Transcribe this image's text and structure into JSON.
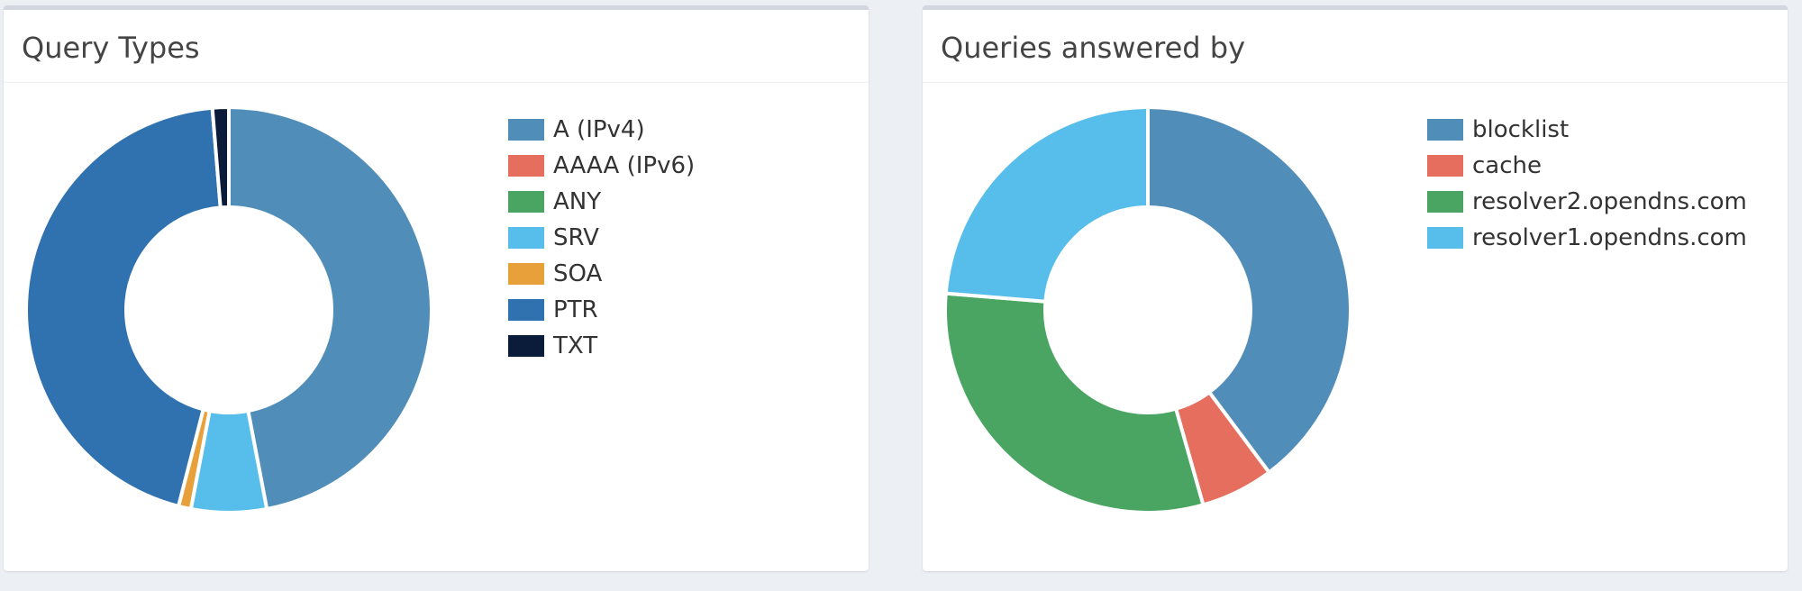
{
  "chart_data": [
    {
      "type": "pie",
      "title": "Query Types",
      "categories": [
        "A (IPv4)",
        "AAAA (IPv6)",
        "ANY",
        "SRV",
        "SOA",
        "PTR",
        "TXT"
      ],
      "values": [
        47.0,
        0.0,
        0.0,
        6.0,
        1.0,
        44.7,
        1.3
      ],
      "colors": [
        "#508db9",
        "#e66e5e",
        "#4aa562",
        "#57bdeb",
        "#e8a03a",
        "#3071b0",
        "#0b1c3a"
      ],
      "donut": true,
      "legend_position": "right"
    },
    {
      "type": "pie",
      "title": "Queries answered by",
      "categories": [
        "blocklist",
        "cache",
        "resolver2.opendns.com",
        "resolver1.opendns.com"
      ],
      "values": [
        39.8,
        5.8,
        30.7,
        23.7
      ],
      "colors": [
        "#508db9",
        "#e66e5e",
        "#4aa562",
        "#57bdeb"
      ],
      "donut": true,
      "legend_position": "right"
    }
  ]
}
